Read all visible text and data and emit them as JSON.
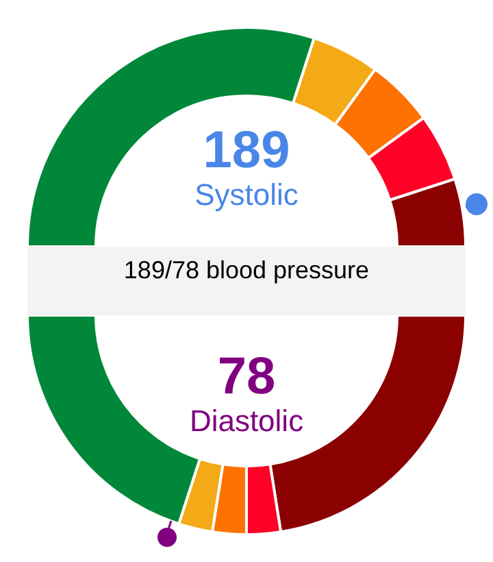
{
  "chart_data": [
    {
      "type": "donut",
      "title": "189",
      "subtitle": "Systolic",
      "annotations": [
        "189/78 blood pressure"
      ],
      "categories": [
        null,
        null,
        null,
        null,
        null
      ],
      "values": [
        60,
        10,
        10,
        10,
        10
      ],
      "colors": [
        "#00873a",
        "#f4a917",
        "#fd7200",
        "#ff0026",
        "#8b0000"
      ]
    },
    {
      "type": "donut",
      "title": "78",
      "subtitle": "Diastolic",
      "categories": [
        null,
        null,
        null,
        null,
        null
      ],
      "values": [
        45,
        5,
        5,
        5,
        40
      ],
      "colors": [
        "#8b0000",
        "#ff0026",
        "#fd7200",
        "#f4a917",
        "#00873a"
      ]
    }
  ]
}
